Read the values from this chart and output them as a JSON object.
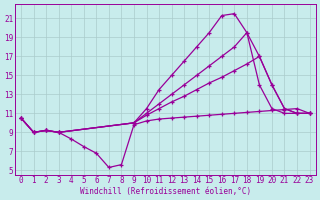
{
  "xlabel": "Windchill (Refroidissement éolien,°C)",
  "bg_color": "#c8ecec",
  "grid_color": "#aacccc",
  "line_color": "#990099",
  "xlim": [
    -0.5,
    23.5
  ],
  "ylim": [
    4.5,
    22.5
  ],
  "xticks": [
    0,
    1,
    2,
    3,
    4,
    5,
    6,
    7,
    8,
    9,
    10,
    11,
    12,
    13,
    14,
    15,
    16,
    17,
    18,
    19,
    20,
    21,
    22,
    23
  ],
  "yticks": [
    5,
    7,
    9,
    11,
    13,
    15,
    17,
    19,
    21
  ],
  "series": [
    {
      "x": [
        0,
        1,
        2,
        3,
        4,
        5,
        6,
        7,
        8,
        9,
        10,
        11,
        12,
        13,
        14,
        15,
        16,
        17,
        18,
        19,
        20,
        21,
        22,
        23
      ],
      "y": [
        10.5,
        9.0,
        9.2,
        9.0,
        8.3,
        7.5,
        6.8,
        5.3,
        5.6,
        9.8,
        10.2,
        10.4,
        10.5,
        10.6,
        10.7,
        10.8,
        10.9,
        11.0,
        11.1,
        11.2,
        11.3,
        11.4,
        11.5,
        11.0
      ]
    },
    {
      "x": [
        0,
        1,
        2,
        3,
        9,
        10,
        11,
        12,
        13,
        14,
        15,
        16,
        17,
        18,
        19,
        20,
        21,
        22,
        23
      ],
      "y": [
        10.5,
        9.0,
        9.2,
        9.0,
        10.0,
        11.5,
        13.5,
        15.0,
        16.5,
        18.0,
        19.5,
        21.3,
        21.5,
        19.5,
        14.0,
        11.5,
        11.0,
        11.0,
        11.0
      ]
    },
    {
      "x": [
        0,
        1,
        2,
        3,
        9,
        10,
        11,
        12,
        13,
        14,
        15,
        16,
        17,
        18,
        19,
        20,
        21,
        22,
        23
      ],
      "y": [
        10.5,
        9.0,
        9.2,
        9.0,
        10.0,
        11.0,
        12.0,
        13.0,
        14.0,
        15.0,
        16.0,
        17.0,
        18.0,
        19.5,
        17.0,
        14.0,
        11.5,
        11.0,
        11.0
      ]
    },
    {
      "x": [
        0,
        1,
        2,
        3,
        9,
        10,
        11,
        12,
        13,
        14,
        15,
        16,
        17,
        18,
        19,
        20,
        21,
        22,
        23
      ],
      "y": [
        10.5,
        9.0,
        9.2,
        9.0,
        10.0,
        10.8,
        11.5,
        12.2,
        12.8,
        13.5,
        14.2,
        14.8,
        15.5,
        16.2,
        17.0,
        14.0,
        11.5,
        11.0,
        11.0
      ]
    }
  ]
}
